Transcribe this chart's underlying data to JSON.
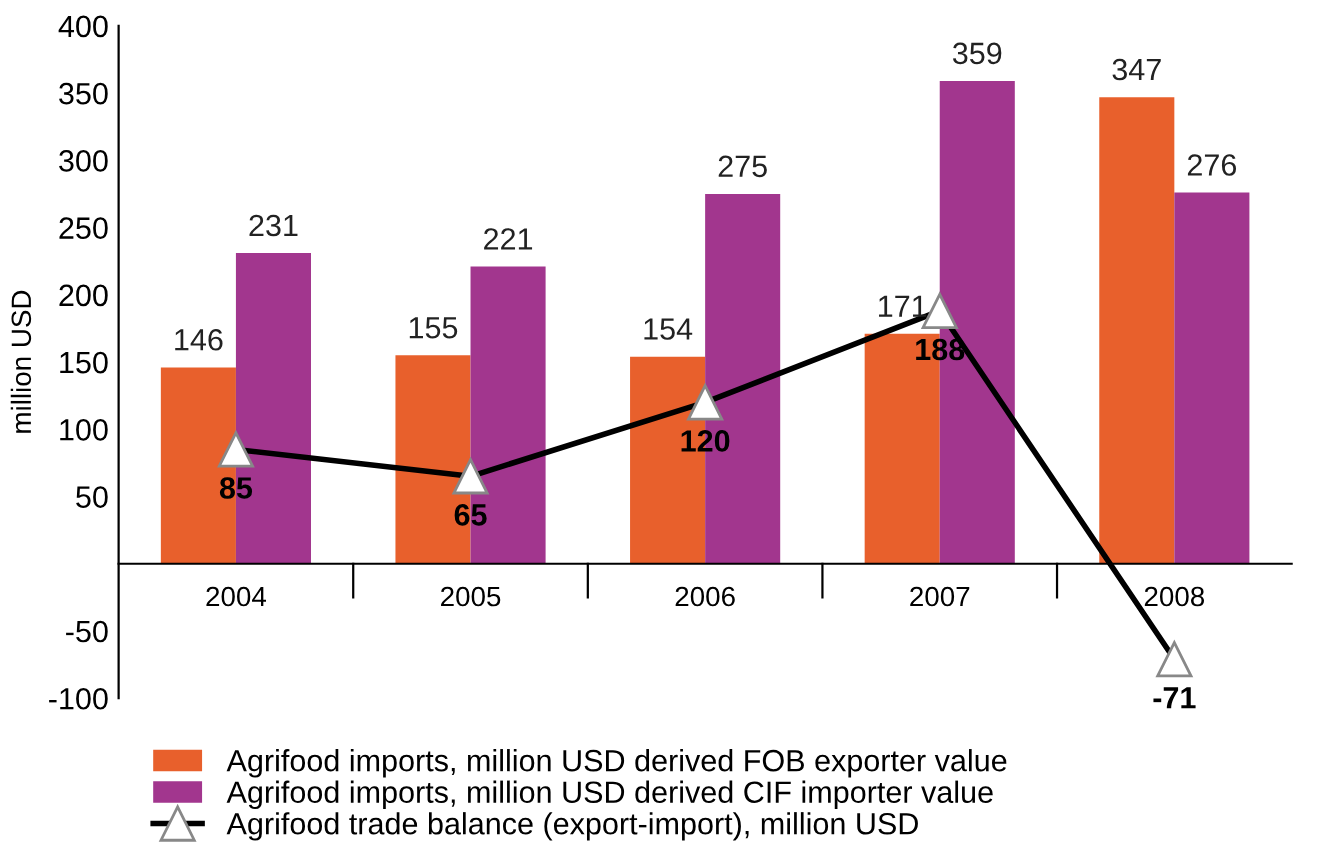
{
  "chart_data": {
    "type": "bar",
    "ylabel": "million USD",
    "categories": [
      "2004",
      "2005",
      "2006",
      "2007",
      "2008"
    ],
    "series": [
      {
        "name": "Agrifood imports, million USD derived FOB exporter value",
        "color": "#e8602c",
        "values": [
          146,
          155,
          154,
          171,
          347
        ]
      },
      {
        "name": "Agrifood imports, million USD derived CIF importer value",
        "color": "#a2368e",
        "values": [
          231,
          221,
          275,
          359,
          276
        ]
      },
      {
        "name": "Agrifood trade balance (export-import), million USD",
        "type": "line",
        "color": "#000000",
        "marker": "triangle",
        "values": [
          85,
          65,
          120,
          188,
          -71
        ]
      }
    ],
    "ylim": [
      -100,
      400
    ],
    "yticks": [
      {
        "value": -100,
        "label": "-100"
      },
      {
        "value": -50,
        "label": "-50"
      },
      50,
      100,
      150,
      200,
      250,
      300,
      350,
      400
    ],
    "data_labels": true,
    "grid": false,
    "legend": "bottom"
  }
}
